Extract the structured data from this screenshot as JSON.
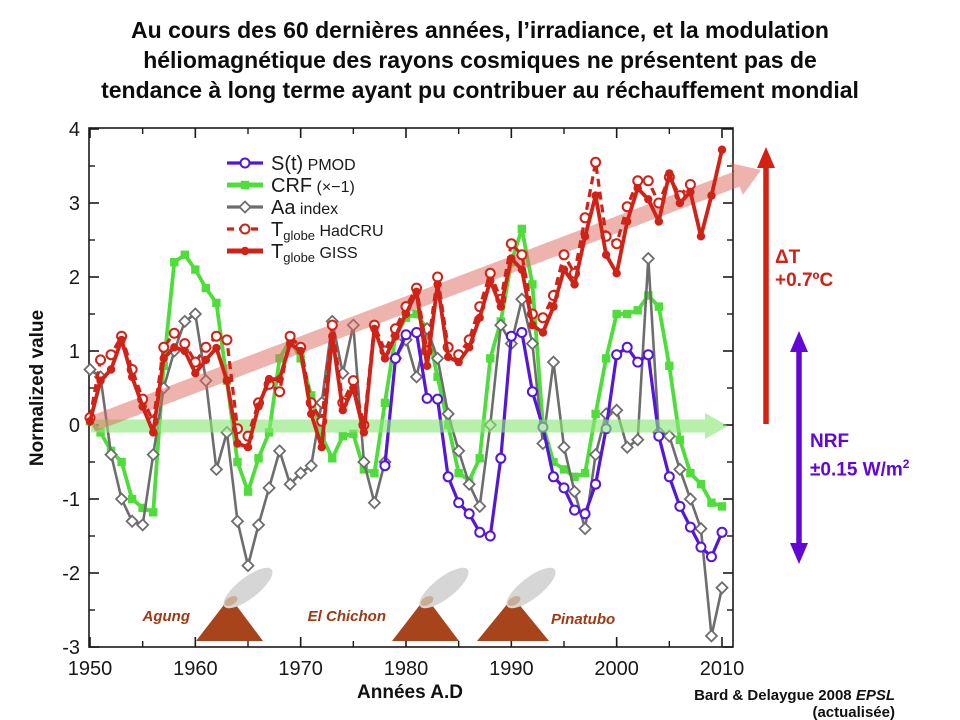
{
  "title_lines": [
    "Au cours des 60 dernières années, l’irradiance, et la modulation",
    "héliomagnétique des rayons cosmiques ne présentent pas de",
    "tendance à long terme ayant pu contribuer au réchauffement mondial"
  ],
  "legend": {
    "items": [
      {
        "series": "st_pmod",
        "main": "S(t)",
        "sub": "",
        "small": " PMOD"
      },
      {
        "series": "crf",
        "main": "CRF",
        "sub": "",
        "small": " (×−1)"
      },
      {
        "series": "aa_index",
        "main": "Aa",
        "sub": "",
        "small": " index"
      },
      {
        "series": "tglobe_hadcru",
        "main": "T",
        "sub": "globe",
        "small": " HadCRU"
      },
      {
        "series": "tglobe_giss",
        "main": "T",
        "sub": "globe",
        "small": " GISS"
      }
    ]
  },
  "annotations": {
    "warming_arrow": {
      "label_line1": "ΔT",
      "label_line2": "+0.7ºC",
      "color": "#cf2318"
    },
    "nrf_arrow": {
      "label_line1": "NRF",
      "label_line2": "±0.15 W/m",
      "sup": "2",
      "color": "#6207d6"
    }
  },
  "volcanoes": [
    {
      "name": "Agung"
    },
    {
      "name": "El Chichon"
    },
    {
      "name": "Pinatubo"
    }
  ],
  "attribution": {
    "pre": "Bard & Delaygue 2008 ",
    "italic": "EPSL",
    "post": " (actualisée)"
  },
  "chart_data": {
    "type": "line",
    "xlabel": "Années A.D",
    "ylabel": "Normalized value",
    "x_range": [
      1950,
      2011.4
    ],
    "y_range": [
      -3,
      4
    ],
    "x_ticks_major": [
      1950,
      1960,
      1970,
      1980,
      1990,
      2000,
      2010
    ],
    "x_ticks_minor": [
      1955,
      1965,
      1975,
      1985,
      1995,
      2005
    ],
    "y_ticks_major": [
      -3,
      -2,
      -1,
      0,
      1,
      2,
      3,
      4
    ],
    "y_ticks_minor": [
      -2.5,
      -1.5,
      -0.5,
      0.5,
      1.5,
      2.5,
      3.5
    ],
    "grid": false,
    "legend_position": "top-left",
    "colors": {
      "red": "#cf2318",
      "green": "#4fdd3c",
      "gray": "#6d6d6d",
      "violet": "#5417d9",
      "pink_band": "#de6a5e",
      "green_band": "#8ce878",
      "purple": "#6207d6"
    },
    "series": [
      {
        "id": "crf",
        "name": "CRF (×−1)",
        "color": "#4fdd3c",
        "line": "solid",
        "marker": "square_filled",
        "start_year": 1950,
        "values": [
          0.05,
          -0.1,
          -0.35,
          -0.5,
          -1.0,
          -1.12,
          -1.18,
          0.8,
          2.2,
          2.3,
          2.1,
          1.85,
          1.65,
          0.6,
          -0.5,
          -0.9,
          -0.45,
          -0.1,
          0.9,
          1.15,
          0.9,
          0.4,
          -0.15,
          -0.45,
          -0.15,
          -0.12,
          -0.6,
          -0.65,
          0.3,
          1.2,
          1.45,
          1.5,
          1.3,
          0.65,
          0.0,
          -0.65,
          -0.75,
          -0.45,
          0.9,
          1.4,
          2.2,
          2.65,
          1.9,
          0.0,
          -0.5,
          -0.6,
          -0.7,
          -0.65,
          0.15,
          0.9,
          1.5,
          1.5,
          1.55,
          1.75,
          1.6,
          0.8,
          -0.2,
          -0.65,
          -0.8,
          -1.05,
          -1.1
        ]
      },
      {
        "id": "aa_index",
        "name": "Aa index",
        "color": "#6d6d6d",
        "line": "solid",
        "marker": "diamond_open",
        "start_year": 1950,
        "values": [
          0.75,
          0.65,
          -0.4,
          -1.0,
          -1.3,
          -1.35,
          -0.4,
          0.5,
          1.0,
          1.4,
          1.5,
          0.6,
          -0.6,
          -0.1,
          -1.3,
          -1.9,
          -1.35,
          -0.85,
          -0.35,
          -0.8,
          -0.65,
          -0.55,
          0.3,
          1.4,
          0.7,
          1.35,
          -0.5,
          -1.05,
          -0.5,
          0.9,
          1.15,
          0.65,
          1.3,
          0.9,
          0.15,
          -0.35,
          -0.8,
          -1.1,
          0.0,
          1.35,
          1.1,
          1.7,
          1.1,
          -0.25,
          0.85,
          -0.3,
          -0.9,
          -1.4,
          -0.4,
          0.15,
          0.2,
          -0.3,
          -0.2,
          2.25,
          -0.1,
          -0.15,
          -0.6,
          -1.0,
          -1.4,
          -2.85,
          -2.2
        ]
      },
      {
        "id": "st_pmod",
        "name": "S(t) PMOD",
        "color": "#5417d9",
        "line": "solid",
        "marker": "circle_open",
        "start_year": 1978,
        "values": [
          -0.55,
          0.9,
          1.22,
          1.25,
          0.36,
          0.35,
          -0.7,
          -1.05,
          -1.2,
          -1.45,
          -1.5,
          -0.45,
          1.2,
          1.25,
          0.45,
          -0.03,
          -0.7,
          -0.85,
          -1.15,
          -1.2,
          -0.8,
          -0.05,
          0.95,
          1.05,
          0.85,
          0.95,
          -0.15,
          -0.7,
          -1.1,
          -1.38,
          -1.65,
          -1.78,
          -1.45
        ]
      },
      {
        "id": "tglobe_hadcru",
        "name": "Tglobe HadCRU",
        "color": "#cf2318",
        "line": "dashed",
        "marker": "circle_open",
        "start_year": 1950,
        "values": [
          0.1,
          0.88,
          0.95,
          1.2,
          0.75,
          0.35,
          0.05,
          1.05,
          1.24,
          1.1,
          0.85,
          1.05,
          1.2,
          1.15,
          -0.05,
          -0.15,
          0.3,
          0.55,
          0.45,
          1.2,
          1.05,
          0.3,
          0.05,
          1.35,
          0.3,
          0.6,
          0.0,
          1.35,
          1.0,
          1.3,
          1.6,
          1.85,
          1.0,
          2.0,
          1.05,
          0.95,
          1.15,
          1.6,
          2.05,
          1.7,
          2.45,
          2.3,
          1.5,
          1.45,
          1.75,
          2.3,
          2.05,
          2.8,
          3.55,
          2.55,
          2.45,
          2.95,
          3.3,
          3.3,
          3.0,
          3.35,
          3.1,
          3.25
        ]
      },
      {
        "id": "tglobe_giss",
        "name": "Tglobe GISS",
        "color": "#cf2318",
        "line": "solid",
        "marker": "circle_filled",
        "start_year": 1950,
        "values": [
          0.05,
          0.6,
          0.75,
          1.15,
          0.65,
          0.25,
          -0.1,
          0.9,
          1.05,
          1.0,
          0.7,
          0.88,
          1.04,
          0.6,
          -0.25,
          -0.3,
          0.25,
          0.62,
          0.62,
          1.1,
          1.0,
          0.15,
          -0.3,
          1.2,
          0.2,
          0.5,
          -0.1,
          1.3,
          0.9,
          1.2,
          1.5,
          1.8,
          0.8,
          1.9,
          0.92,
          0.85,
          1.05,
          1.45,
          1.95,
          1.6,
          2.25,
          2.1,
          1.35,
          1.25,
          1.6,
          2.1,
          1.9,
          2.55,
          3.1,
          2.3,
          2.05,
          2.75,
          3.2,
          3.05,
          2.75,
          3.4,
          3.0,
          3.15,
          2.55,
          3.1,
          3.72
        ]
      }
    ]
  }
}
